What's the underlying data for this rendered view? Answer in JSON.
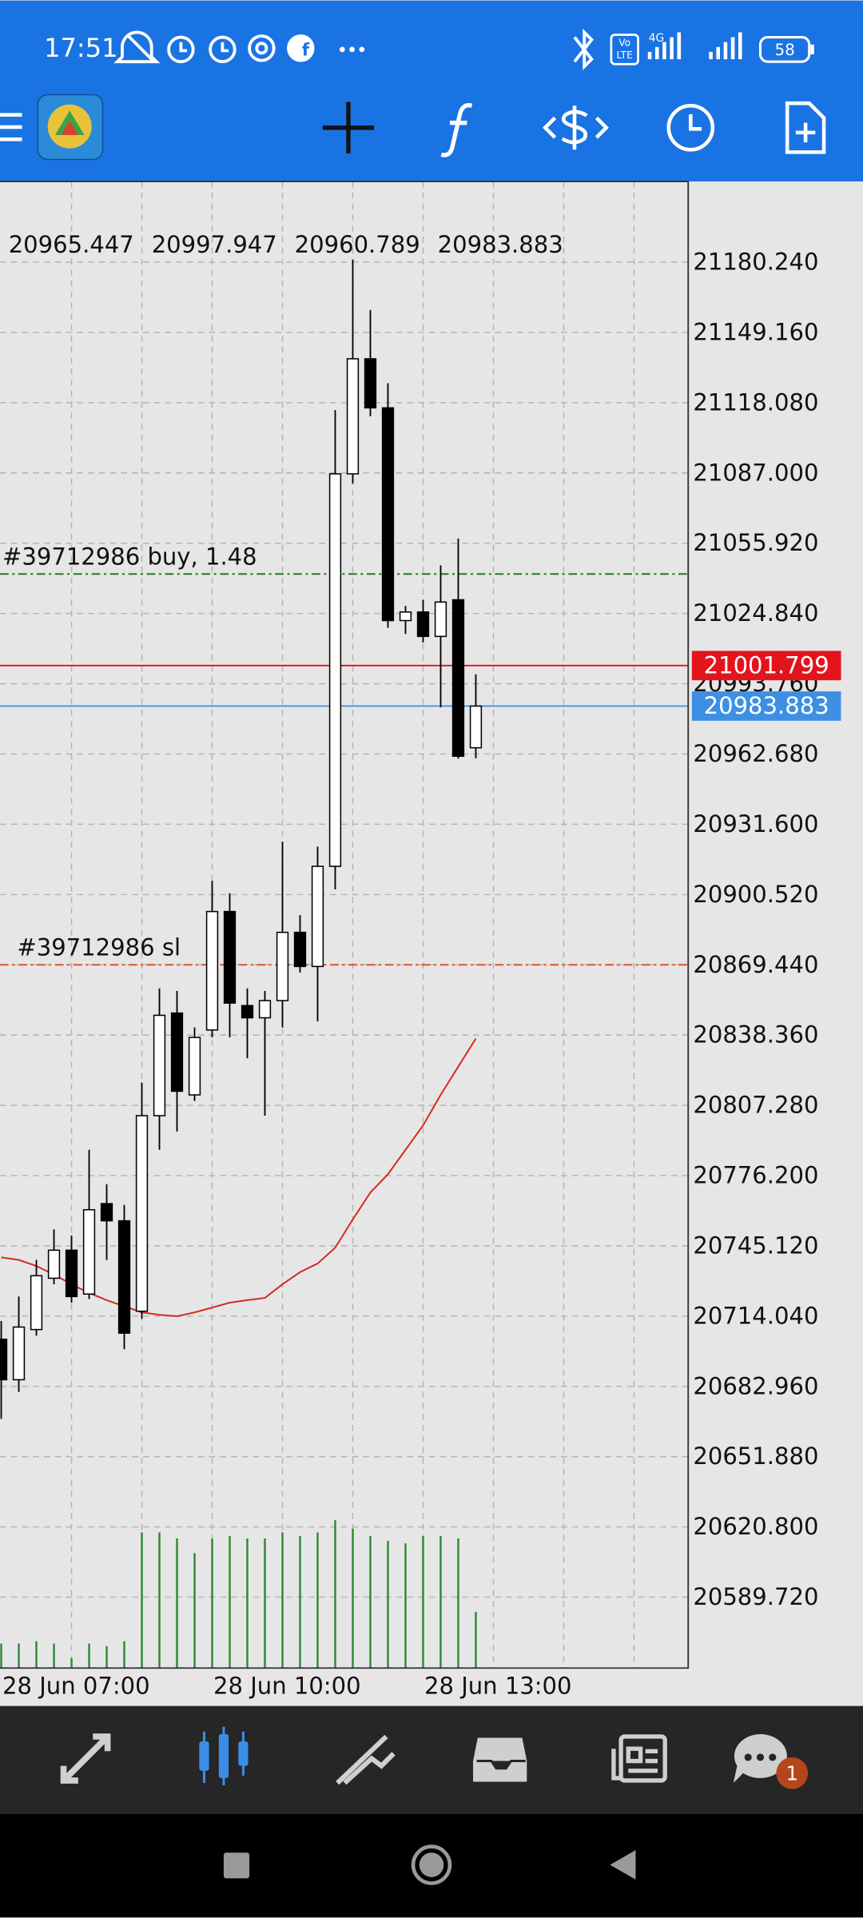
{
  "status_bar": {
    "time": "17:51",
    "volte": [
      "Vo",
      "LTE"
    ],
    "network": "4G",
    "battery": "58"
  },
  "chat_badge": "1",
  "chart_data": {
    "type": "candlestick",
    "categories": [
      "28 Jun 07:00",
      null,
      null,
      null,
      null,
      null,
      null,
      null,
      null,
      null,
      null,
      null,
      "28 Jun 10:00",
      null,
      null,
      null,
      null,
      null,
      null,
      null,
      null,
      null,
      null,
      null,
      "28 Jun 13:00",
      null,
      null,
      null
    ],
    "open": [
      20703.8,
      20685.9,
      20708.1,
      20730.8,
      20743.2,
      20723.8,
      20763.8,
      20756.2,
      20716.2,
      20802.7,
      20848.1,
      20811.9,
      20840.6,
      20893.0,
      20851.4,
      20846.0,
      20853.6,
      20883.8,
      20868.7,
      20913.0,
      21086.6,
      21137.5,
      21115.8,
      21021.7,
      21025.5,
      21014.7,
      21030.9,
      20965.447
    ],
    "high": [
      20711.9,
      20722.7,
      20738.9,
      20752.4,
      20749.7,
      20787.6,
      20772.4,
      20763.2,
      20817.3,
      20859.0,
      20857.9,
      20841.7,
      20906.6,
      20901.1,
      20859.0,
      20857.9,
      20923.9,
      20891.4,
      20921.7,
      21114.8,
      21181.3,
      21159.1,
      21126.7,
      21028.2,
      21030.9,
      21046.1,
      21058.0,
      20997.947
    ],
    "low": [
      20668.6,
      20680.5,
      20705.4,
      20728.1,
      20720.0,
      20721.6,
      20738.9,
      20699.4,
      20712.9,
      20787.6,
      20795.7,
      20809.2,
      20837.3,
      20837.3,
      20828.1,
      20802.7,
      20841.7,
      20866.0,
      20844.4,
      20902.8,
      21082.3,
      21112.1,
      21018.5,
      21015.8,
      21012.0,
      20983.3,
      20960.6,
      20960.789
    ],
    "close": [
      20685.9,
      20709.2,
      20731.9,
      20743.2,
      20722.7,
      20761.1,
      20756.2,
      20706.5,
      20802.7,
      20847.1,
      20813.5,
      20837.3,
      20893.0,
      20852.5,
      20846.0,
      20853.6,
      20883.8,
      20868.7,
      20913.0,
      21086.6,
      21137.5,
      21115.8,
      21021.7,
      21025.5,
      21014.7,
      21029.9,
      20961.7,
      20983.883
    ],
    "up_color": "#ffffff",
    "down_color": "#000000",
    "wick_color": "#000000",
    "moving_average": {
      "color": "#d42a1e",
      "values": [
        20740.0,
        20738.9,
        20736.2,
        20732.4,
        20728.1,
        20724.3,
        20721.1,
        20718.4,
        20715.7,
        20714.6,
        20714.0,
        20715.7,
        20717.8,
        20720.0,
        20721.1,
        20722.1,
        20728.1,
        20733.5,
        20737.3,
        20744.3,
        20756.8,
        20768.7,
        20776.8,
        20787.6,
        20798.4,
        20811.9,
        20824.4,
        20836.8
      ]
    },
    "volume": {
      "color": "#2f8a2f",
      "values": [
        20,
        20,
        22,
        20,
        8,
        20,
        18,
        22,
        111,
        111,
        106,
        94,
        106,
        108,
        106,
        106,
        111,
        108,
        111,
        121,
        114,
        108,
        104,
        102,
        108,
        108,
        106,
        46
      ]
    },
    "ylim": [
      20558.36,
      21215.93
    ],
    "yticks": [
      {
        "value": 21180.24,
        "label": "21180.240"
      },
      {
        "value": 21149.16,
        "label": "21149.160"
      },
      {
        "value": 21118.08,
        "label": "21118.080"
      },
      {
        "value": 21087.0,
        "label": "21087.000"
      },
      {
        "value": 21055.92,
        "label": "21055.920"
      },
      {
        "value": 21024.84,
        "label": "21024.840"
      },
      {
        "value": 20993.76,
        "label": "20993.760"
      },
      {
        "value": 20962.68,
        "label": "20962.680"
      },
      {
        "value": 20931.6,
        "label": "20931.600"
      },
      {
        "value": 20900.52,
        "label": "20900.520"
      },
      {
        "value": 20869.44,
        "label": "20869.440"
      },
      {
        "value": 20838.36,
        "label": "20838.360"
      },
      {
        "value": 20807.28,
        "label": "20807.280"
      },
      {
        "value": 20776.2,
        "label": "20776.200"
      },
      {
        "value": 20745.12,
        "label": "20745.120"
      },
      {
        "value": 20714.04,
        "label": "20714.040"
      },
      {
        "value": 20682.96,
        "label": "20682.960"
      },
      {
        "value": 20651.88,
        "label": "20651.880"
      },
      {
        "value": 20620.8,
        "label": "20620.800"
      },
      {
        "value": 20589.72,
        "label": "20589.720"
      }
    ],
    "grid": true,
    "order_lines": [
      {
        "label": "#39712986 buy, 1.48",
        "value": 21042.3,
        "color": "#1d7d1d"
      },
      {
        "label": "#39712986 sl",
        "value": 20869.44,
        "color": "#d9532c"
      }
    ],
    "price_lines": [
      {
        "value": 21001.799,
        "color": "#e3141c"
      },
      {
        "value": 20983.883,
        "color": "#3d8fe4"
      }
    ]
  }
}
